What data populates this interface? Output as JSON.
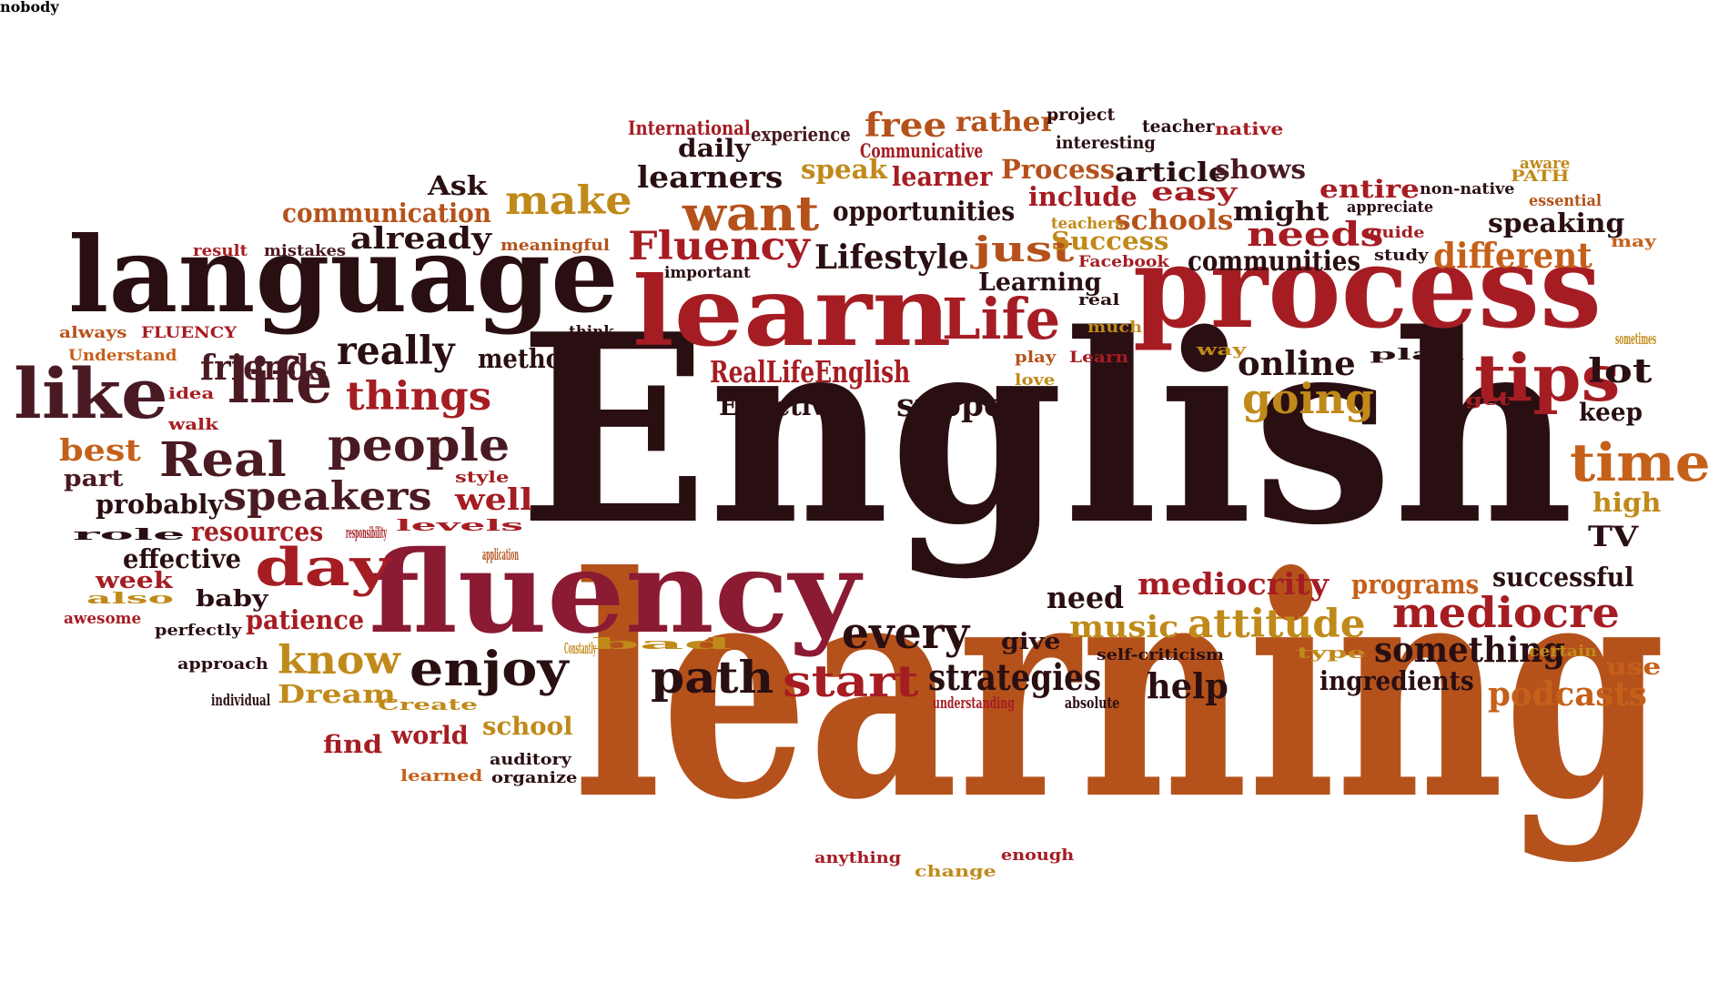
{
  "palette": {
    "black": "#2a0f12",
    "maroon": "#4a1a22",
    "red": "#a51d23",
    "crimson": "#8b1a33",
    "rust": "#b5521b",
    "orange": "#c5601a",
    "gold": "#c08a1a"
  },
  "words": [
    {
      "text": "English",
      "color": "black"
    },
    {
      "text": "learning",
      "color": "rust"
    },
    {
      "text": "language",
      "color": "black"
    },
    {
      "text": "process",
      "color": "red"
    },
    {
      "text": "learn",
      "color": "red"
    },
    {
      "text": "fluency",
      "color": "crimson"
    },
    {
      "text": "like",
      "color": "maroon"
    },
    {
      "text": "Life",
      "color": "red"
    },
    {
      "text": "life",
      "color": "maroon"
    },
    {
      "text": "tips",
      "color": "red"
    },
    {
      "text": "time",
      "color": "orange"
    },
    {
      "text": "day",
      "color": "red"
    },
    {
      "text": "want",
      "color": "rust"
    },
    {
      "text": "Fluency",
      "color": "red"
    },
    {
      "text": "people",
      "color": "maroon"
    },
    {
      "text": "Real",
      "color": "maroon"
    },
    {
      "text": "really",
      "color": "black"
    },
    {
      "text": "enjoy",
      "color": "black"
    },
    {
      "text": "path",
      "color": "black"
    },
    {
      "text": "start",
      "color": "red"
    },
    {
      "text": "every",
      "color": "black"
    },
    {
      "text": "mediocre",
      "color": "red"
    },
    {
      "text": "going",
      "color": "gold"
    },
    {
      "text": "speakers",
      "color": "maroon"
    },
    {
      "text": "things",
      "color": "red"
    },
    {
      "text": "make",
      "color": "gold"
    },
    {
      "text": "friends",
      "color": "maroon"
    },
    {
      "text": "know",
      "color": "gold"
    },
    {
      "text": "attitude",
      "color": "gold"
    },
    {
      "text": "podcasts",
      "color": "orange"
    },
    {
      "text": "different",
      "color": "orange"
    },
    {
      "text": "strategies",
      "color": "black"
    },
    {
      "text": "something",
      "color": "black"
    },
    {
      "text": "RealLifeEnglish",
      "color": "red"
    },
    {
      "text": "Lifestyle",
      "color": "black"
    },
    {
      "text": "just",
      "color": "rust"
    },
    {
      "text": "needs",
      "color": "red"
    },
    {
      "text": "help",
      "color": "black"
    },
    {
      "text": "online",
      "color": "black"
    },
    {
      "text": "lot",
      "color": "black"
    },
    {
      "text": "support",
      "color": "black"
    },
    {
      "text": "best",
      "color": "orange"
    },
    {
      "text": "well",
      "color": "red"
    },
    {
      "text": "mediocrity",
      "color": "red"
    },
    {
      "text": "music",
      "color": "gold"
    },
    {
      "text": "high",
      "color": "gold"
    },
    {
      "text": "TV",
      "color": "black"
    },
    {
      "text": "need",
      "color": "black"
    },
    {
      "text": "free",
      "color": "rust"
    },
    {
      "text": "learners",
      "color": "black"
    },
    {
      "text": "already",
      "color": "black"
    },
    {
      "text": "Effective",
      "color": "black"
    },
    {
      "text": "communities",
      "color": "black"
    },
    {
      "text": "schools",
      "color": "rust"
    },
    {
      "text": "Success",
      "color": "gold"
    },
    {
      "text": "opportunities",
      "color": "black"
    },
    {
      "text": "communication",
      "color": "rust"
    },
    {
      "text": "speaking",
      "color": "black"
    },
    {
      "text": "successful",
      "color": "black"
    },
    {
      "text": "ingredients",
      "color": "black"
    },
    {
      "text": "programs",
      "color": "orange"
    },
    {
      "text": "effective",
      "color": "black"
    },
    {
      "text": "patience",
      "color": "red"
    },
    {
      "text": "resources",
      "color": "red"
    },
    {
      "text": "probably",
      "color": "black"
    },
    {
      "text": "methods",
      "color": "black"
    },
    {
      "text": "keep",
      "color": "black"
    },
    {
      "text": "rather",
      "color": "rust"
    },
    {
      "text": "Process",
      "color": "rust"
    },
    {
      "text": "article",
      "color": "black"
    },
    {
      "text": "shows",
      "color": "maroon"
    },
    {
      "text": "speak",
      "color": "gold"
    },
    {
      "text": "learner",
      "color": "red"
    },
    {
      "text": "include",
      "color": "red"
    },
    {
      "text": "easy",
      "color": "red"
    },
    {
      "text": "entire",
      "color": "red"
    },
    {
      "text": "might",
      "color": "black"
    },
    {
      "text": "daily",
      "color": "black"
    },
    {
      "text": "Ask",
      "color": "black"
    },
    {
      "text": "Learning",
      "color": "black"
    },
    {
      "text": "world",
      "color": "red"
    },
    {
      "text": "find",
      "color": "red"
    },
    {
      "text": "school",
      "color": "gold"
    },
    {
      "text": "Dream",
      "color": "gold"
    },
    {
      "text": "give",
      "color": "black"
    },
    {
      "text": "use",
      "color": "orange"
    },
    {
      "text": "baby",
      "color": "black"
    },
    {
      "text": "week",
      "color": "red"
    },
    {
      "text": "part",
      "color": "maroon"
    },
    {
      "text": "International",
      "color": "red"
    },
    {
      "text": "experience",
      "color": "maroon"
    },
    {
      "text": "Communicative",
      "color": "red"
    },
    {
      "text": "project",
      "color": "black"
    },
    {
      "text": "interesting",
      "color": "black"
    },
    {
      "text": "teacher",
      "color": "black"
    },
    {
      "text": "native",
      "color": "red"
    },
    {
      "text": "non-native",
      "color": "black"
    },
    {
      "text": "appreciate",
      "color": "black"
    },
    {
      "text": "aware",
      "color": "gold"
    },
    {
      "text": "PATH",
      "color": "gold"
    },
    {
      "text": "essential",
      "color": "rust"
    },
    {
      "text": "guide",
      "color": "red"
    },
    {
      "text": "study",
      "color": "black"
    },
    {
      "text": "may",
      "color": "orange"
    },
    {
      "text": "teachers",
      "color": "gold"
    },
    {
      "text": "Facebook",
      "color": "red"
    },
    {
      "text": "meaningful",
      "color": "rust"
    },
    {
      "text": "important",
      "color": "black"
    },
    {
      "text": "mistakes",
      "color": "maroon"
    },
    {
      "text": "result",
      "color": "red"
    },
    {
      "text": "always",
      "color": "rust"
    },
    {
      "text": "FLUENCY",
      "color": "red"
    },
    {
      "text": "Understand",
      "color": "orange"
    },
    {
      "text": "think",
      "color": "black"
    },
    {
      "text": "real",
      "color": "black"
    },
    {
      "text": "much",
      "color": "gold"
    },
    {
      "text": "play",
      "color": "rust"
    },
    {
      "text": "Learn",
      "color": "red"
    },
    {
      "text": "love",
      "color": "gold"
    },
    {
      "text": "way",
      "color": "gold"
    },
    {
      "text": "plan",
      "color": "black"
    },
    {
      "text": "sometimes",
      "color": "gold"
    },
    {
      "text": "get",
      "color": "red"
    },
    {
      "text": "idea",
      "color": "red"
    },
    {
      "text": "walk",
      "color": "red"
    },
    {
      "text": "style",
      "color": "red"
    },
    {
      "text": "levels",
      "color": "red"
    },
    {
      "text": "responsibility",
      "color": "red"
    },
    {
      "text": "role",
      "color": "black"
    },
    {
      "text": "application",
      "color": "rust"
    },
    {
      "text": "also",
      "color": "gold"
    },
    {
      "text": "awesome",
      "color": "red"
    },
    {
      "text": "perfectly",
      "color": "black"
    },
    {
      "text": "approach",
      "color": "black"
    },
    {
      "text": "individual",
      "color": "black"
    },
    {
      "text": "Create",
      "color": "gold"
    },
    {
      "text": "Constantly",
      "color": "gold"
    },
    {
      "text": "bad",
      "color": "gold"
    },
    {
      "text": "self-criticism",
      "color": "black"
    },
    {
      "text": "understanding",
      "color": "red"
    },
    {
      "text": "absolute",
      "color": "black"
    },
    {
      "text": "type",
      "color": "gold"
    },
    {
      "text": "certain",
      "color": "gold"
    },
    {
      "text": "learned",
      "color": "orange"
    },
    {
      "text": "auditory",
      "color": "black"
    },
    {
      "text": "organize",
      "color": "black"
    },
    {
      "text": "anything",
      "color": "red"
    },
    {
      "text": "change",
      "color": "gold"
    },
    {
      "text": "enough",
      "color": "red"
    },
    {
      "text": "nobody",
      "color": "black"
    }
  ]
}
